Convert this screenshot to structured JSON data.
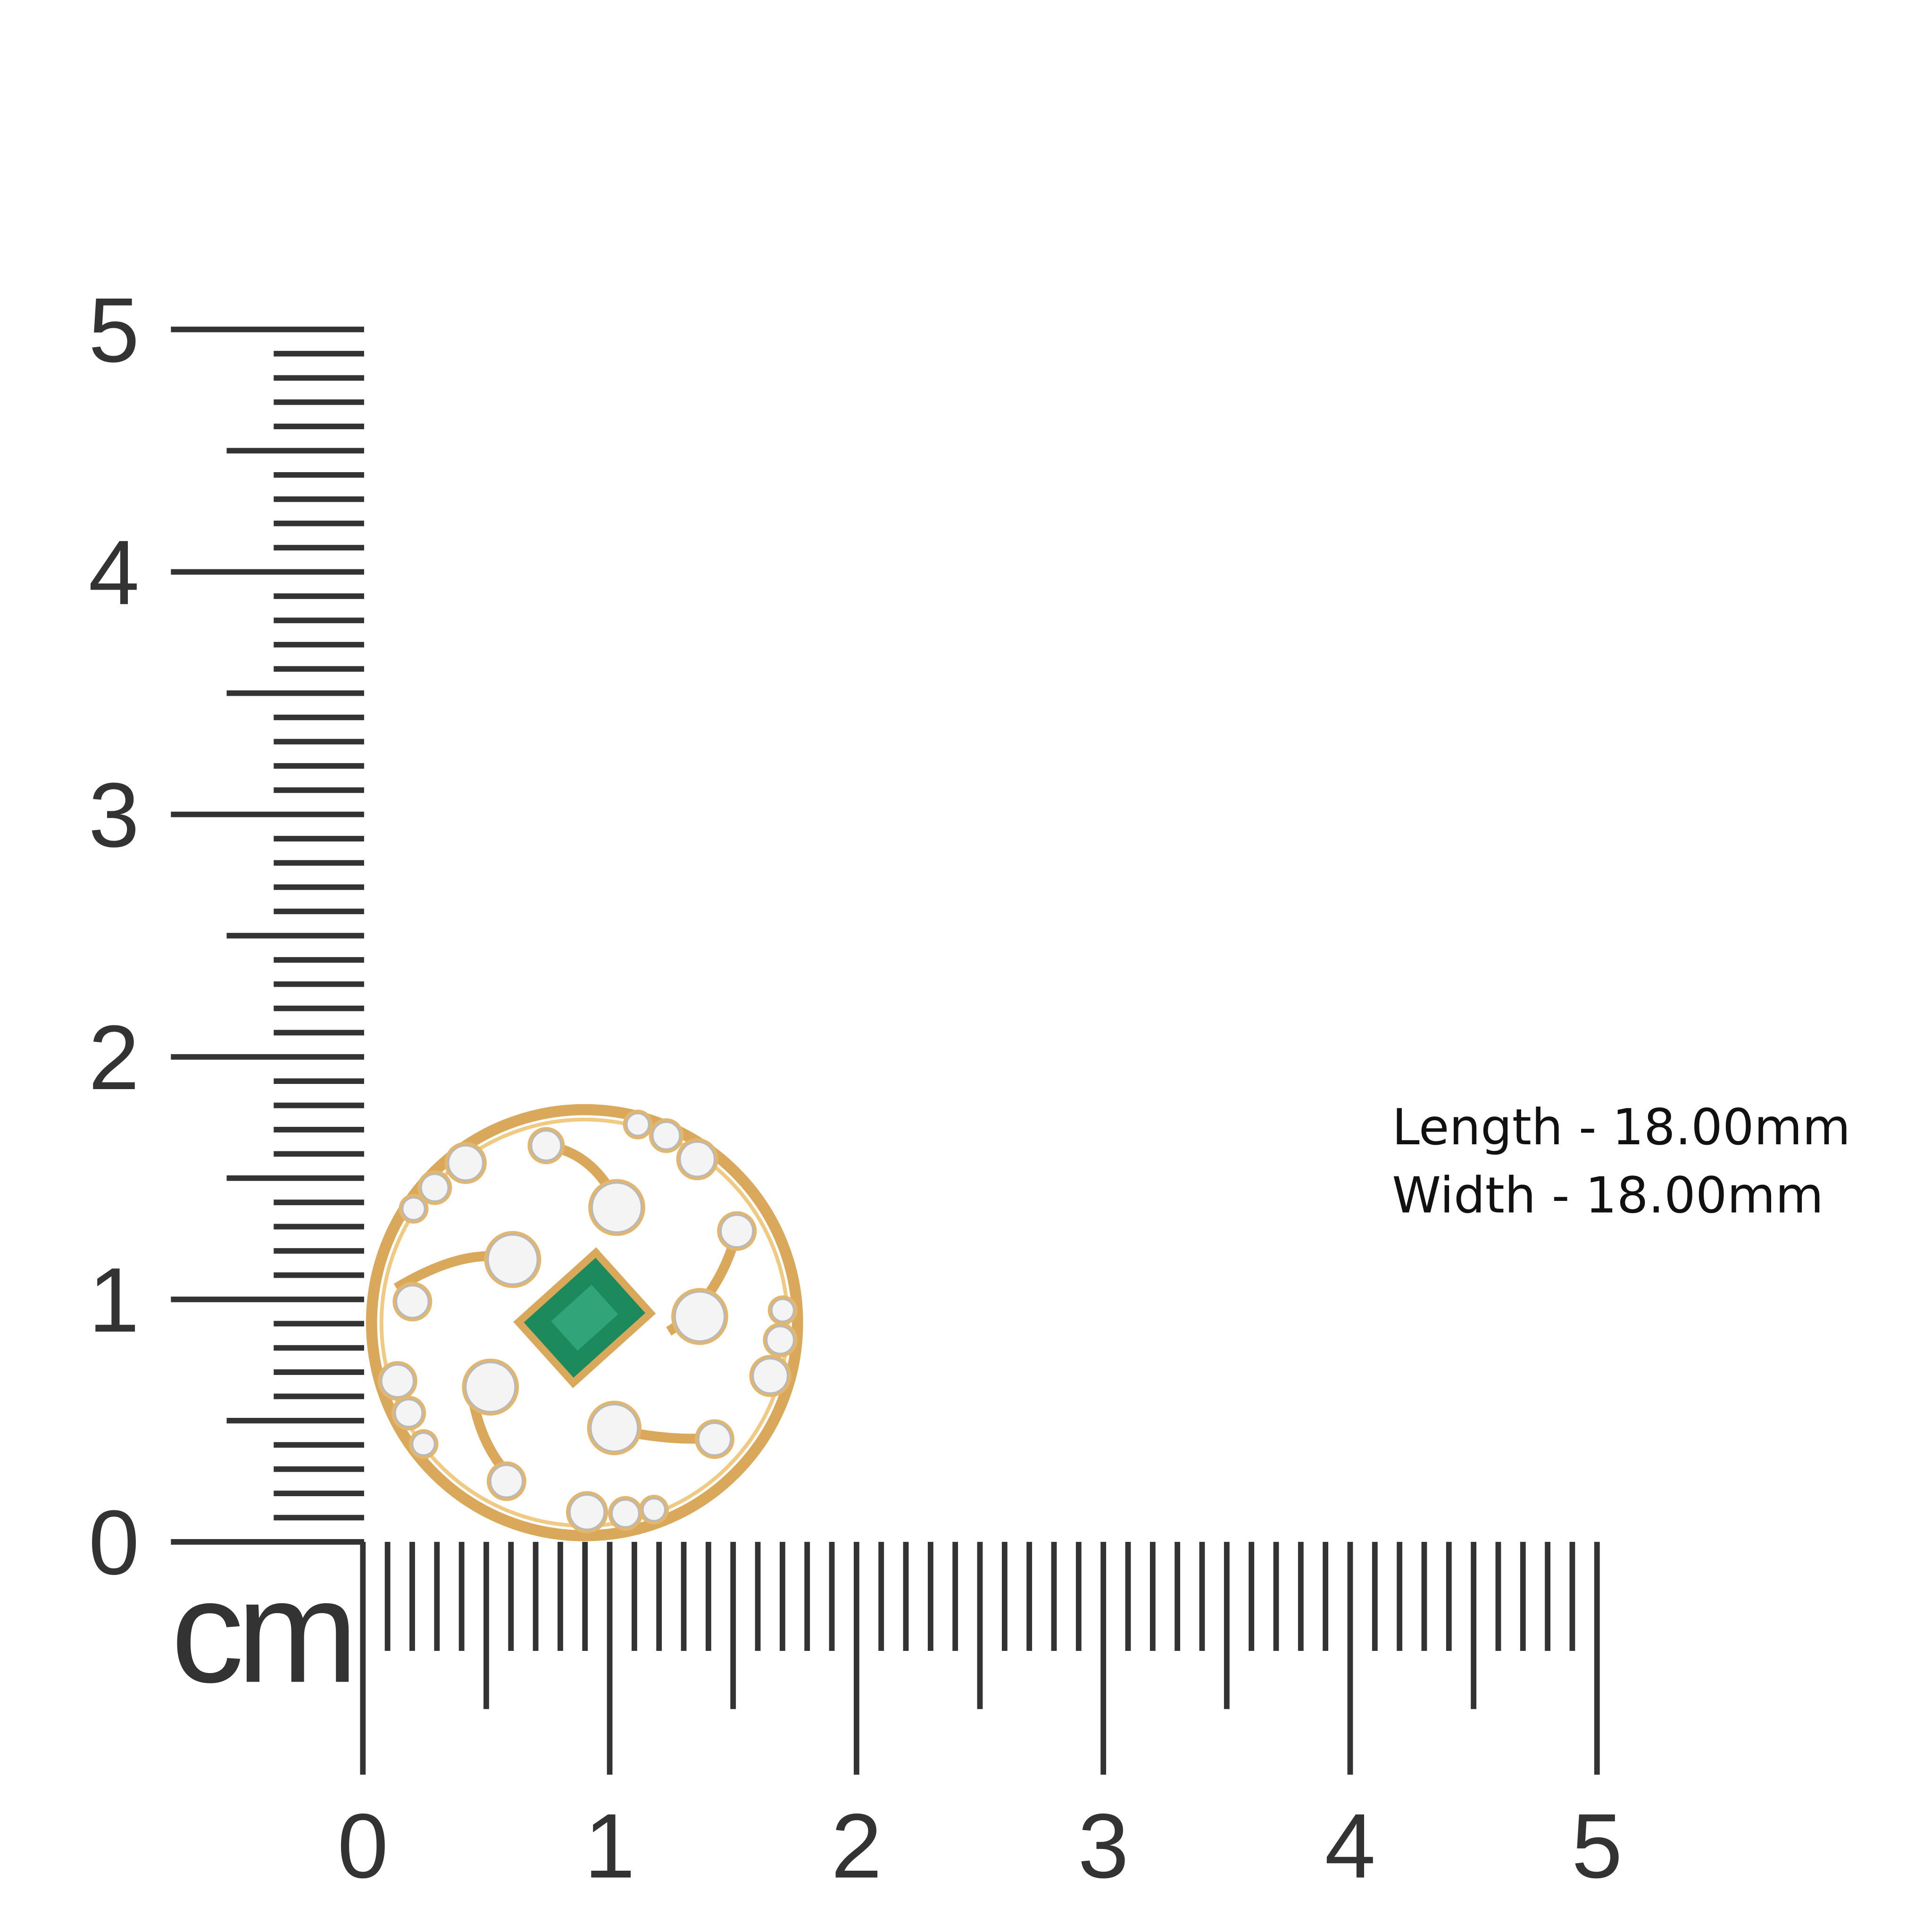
{
  "vertical_ruler": {
    "labels": [
      "0",
      "1",
      "2",
      "3",
      "4",
      "5"
    ]
  },
  "horizontal_ruler": {
    "labels": [
      "0",
      "1",
      "2",
      "3",
      "4",
      "5"
    ]
  },
  "unit": "cm",
  "dimensions": {
    "length": "Length - 18.00mm",
    "width": "Width - 18.00mm"
  }
}
